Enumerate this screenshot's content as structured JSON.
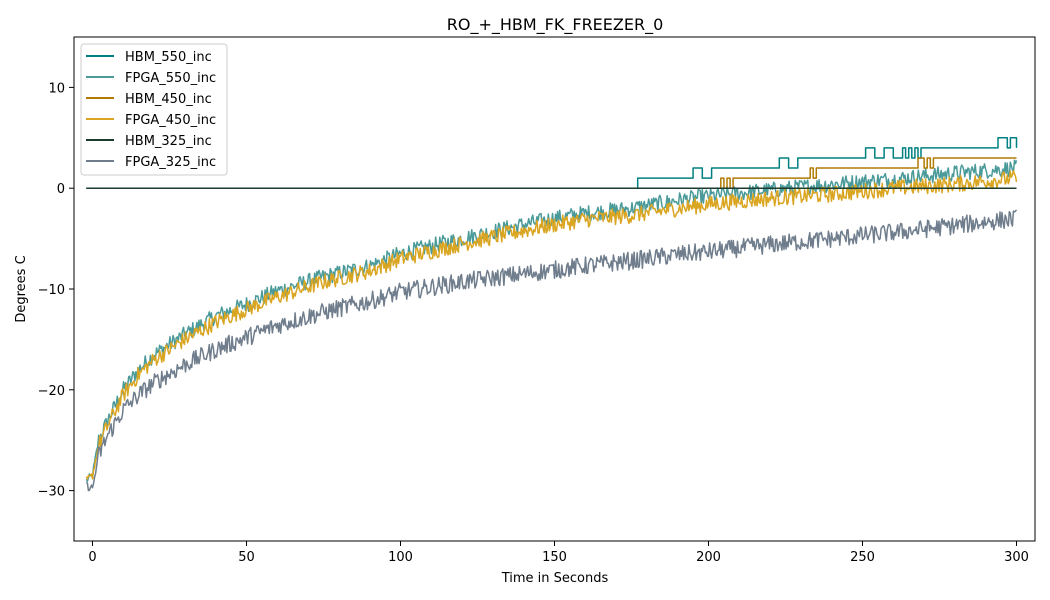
{
  "chart_data": {
    "type": "line",
    "title": "RO_+_HBM_FK_FREEZER_0",
    "xlabel": "Time in Seconds",
    "ylabel": "Degrees C",
    "xlim": [
      -6,
      306
    ],
    "ylim": [
      -35,
      15
    ],
    "xticks": [
      0,
      50,
      100,
      150,
      200,
      250,
      300
    ],
    "yticks": [
      -30,
      -20,
      -10,
      0,
      10
    ],
    "ytick_labels": [
      "−30",
      "−20",
      "−10",
      "0",
      "10"
    ],
    "grid": false,
    "legend_position": "top-left",
    "series": [
      {
        "name": "HBM_550_inc",
        "color": "#008080",
        "kind": "step",
        "x": [
          -2,
          176,
          177,
          194,
          195,
          197,
          198,
          200,
          201,
          207,
          222,
          223,
          225,
          226,
          228,
          229,
          250,
          251,
          253,
          254,
          256,
          257,
          259,
          260,
          262,
          263,
          264,
          265,
          266,
          267,
          268,
          269,
          270,
          271,
          293,
          294,
          297,
          298,
          300
        ],
        "y": [
          0,
          0,
          1,
          1,
          2,
          2,
          1,
          1,
          2,
          2,
          2,
          3,
          3,
          2,
          2,
          3,
          3,
          4,
          4,
          3,
          3,
          4,
          4,
          3,
          3,
          4,
          3,
          4,
          3,
          4,
          3,
          4,
          4,
          4,
          4,
          5,
          4,
          5,
          4
        ]
      },
      {
        "name": "FPGA_550_inc",
        "color": "#4b9a9a",
        "kind": "noisy",
        "noise": 0.8,
        "x": [
          -2,
          0,
          2,
          5,
          10,
          15,
          20,
          30,
          40,
          50,
          60,
          75,
          90,
          100,
          120,
          140,
          150,
          160,
          175,
          190,
          200,
          220,
          240,
          260,
          280,
          300
        ],
        "y": [
          -29,
          -28.5,
          -25,
          -23,
          -20,
          -18,
          -16.5,
          -14.5,
          -12.7,
          -11.5,
          -10.2,
          -8.8,
          -7.7,
          -6.5,
          -5,
          -3.6,
          -3,
          -2.5,
          -2,
          -1.2,
          -0.8,
          -0.2,
          0.4,
          0.9,
          1.5,
          2
        ]
      },
      {
        "name": "HBM_450_inc",
        "color": "#b07a00",
        "kind": "step",
        "x": [
          -2,
          203,
          204,
          205,
          206,
          207,
          208,
          232,
          233,
          234,
          235,
          253,
          254,
          267,
          268,
          270,
          271,
          272,
          273,
          274,
          275,
          300
        ],
        "y": [
          0,
          0,
          1,
          0,
          1,
          0,
          1,
          1,
          2,
          1,
          2,
          2,
          2,
          2,
          3,
          2,
          3,
          2,
          3,
          3,
          3,
          3
        ]
      },
      {
        "name": "FPGA_450_inc",
        "color": "#daa520",
        "kind": "noisy",
        "noise": 0.8,
        "x": [
          -2,
          0,
          2,
          5,
          10,
          15,
          20,
          30,
          40,
          50,
          60,
          75,
          90,
          100,
          120,
          140,
          150,
          160,
          175,
          190,
          200,
          220,
          240,
          260,
          280,
          300
        ],
        "y": [
          -29,
          -28.5,
          -25.5,
          -23.5,
          -20.5,
          -18.5,
          -17,
          -15,
          -13.3,
          -12,
          -10.8,
          -9.3,
          -8.2,
          -7,
          -5.5,
          -4.2,
          -3.6,
          -3.1,
          -2.7,
          -2,
          -1.6,
          -1,
          -0.6,
          0,
          0.4,
          1
        ]
      },
      {
        "name": "HBM_325_inc",
        "color": "#1c3d2e",
        "kind": "step",
        "x": [
          -2,
          300
        ],
        "y": [
          0,
          0
        ]
      },
      {
        "name": "FPGA_325_inc",
        "color": "#6f7d8c",
        "kind": "noisy",
        "noise": 0.9,
        "x": [
          -2,
          0,
          2,
          5,
          10,
          15,
          20,
          30,
          40,
          50,
          60,
          75,
          90,
          100,
          120,
          140,
          150,
          160,
          175,
          190,
          200,
          220,
          240,
          260,
          280,
          300
        ],
        "y": [
          -29.5,
          -29.8,
          -26.5,
          -24.5,
          -22,
          -20.5,
          -19.3,
          -17.5,
          -16,
          -14.8,
          -13.6,
          -12.3,
          -11.2,
          -10.3,
          -9.3,
          -8.5,
          -8.1,
          -7.7,
          -7.2,
          -6.6,
          -6.3,
          -5.6,
          -5,
          -4.4,
          -3.7,
          -3
        ]
      }
    ]
  }
}
